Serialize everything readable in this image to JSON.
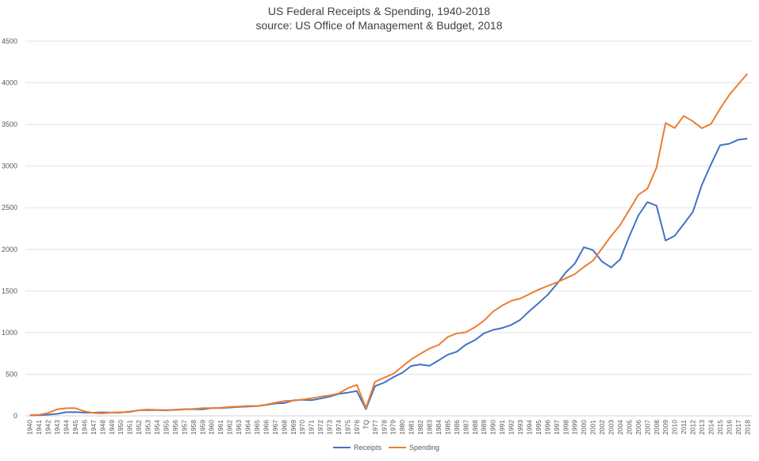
{
  "chart_data": {
    "type": "line",
    "title": "US Federal Receipts & Spending, 1940-2018",
    "subtitle": "source: US Office of Management & Budget, 2018",
    "xlabel": "",
    "ylabel": "",
    "ylim": [
      0,
      4500
    ],
    "yticks": [
      0,
      500,
      1000,
      1500,
      2000,
      2500,
      3000,
      3500,
      4000,
      4500
    ],
    "grid": true,
    "legend_position": "bottom",
    "categories": [
      "1940",
      "1941",
      "1942",
      "1943",
      "1944",
      "1945",
      "1946",
      "1947",
      "1948",
      "1949",
      "1950",
      "1951",
      "1952",
      "1953",
      "1954",
      "1955",
      "1956",
      "1957",
      "1958",
      "1959",
      "1960",
      "1961",
      "1962",
      "1963",
      "1964",
      "1965",
      "1966",
      "1967",
      "1968",
      "1969",
      "1970",
      "1971",
      "1972",
      "1973",
      "1974",
      "1975",
      "1976",
      "TQ",
      "1977",
      "1978",
      "1979",
      "1980",
      "1981",
      "1982",
      "1983",
      "1984",
      "1985",
      "1986",
      "1987",
      "1988",
      "1989",
      "1990",
      "1991",
      "1992",
      "1993",
      "1994",
      "1995",
      "1996",
      "1997",
      "1998",
      "1999",
      "2000",
      "2001",
      "2002",
      "2003",
      "2004",
      "2005",
      "2006",
      "2007",
      "2008",
      "2009",
      "2010",
      "2011",
      "2012",
      "2013",
      "2014",
      "2015",
      "2016",
      "2017",
      "2018"
    ],
    "series": [
      {
        "name": "Receipts",
        "color": "#4472C4",
        "values": [
          6.5,
          8.7,
          14.6,
          24.0,
          43.7,
          45.2,
          39.3,
          38.5,
          41.6,
          39.4,
          39.4,
          51.6,
          66.2,
          69.6,
          69.7,
          65.5,
          74.6,
          80.0,
          79.6,
          79.2,
          92.5,
          94.4,
          99.7,
          106.6,
          112.6,
          116.8,
          130.8,
          148.8,
          153.0,
          186.9,
          192.8,
          187.1,
          207.3,
          230.8,
          263.2,
          279.1,
          298.1,
          81.2,
          355.6,
          399.6,
          463.3,
          517.1,
          599.3,
          617.8,
          600.6,
          666.4,
          734.0,
          769.2,
          854.3,
          909.2,
          991.1,
          1032.0,
          1055.0,
          1091.2,
          1154.3,
          1258.6,
          1351.8,
          1453.1,
          1579.2,
          1721.7,
          1827.5,
          2025.2,
          1991.1,
          1853.1,
          1782.3,
          1880.1,
          2153.6,
          2406.9,
          2568.0,
          2524.0,
          2105.0,
          2162.7,
          2303.5,
          2450.0,
          2775.1,
          3021.5,
          3249.9,
          3268.0,
          3316.2,
          3329.9
        ]
      },
      {
        "name": "Spending",
        "color": "#ED7D31",
        "values": [
          9.5,
          13.7,
          35.1,
          78.6,
          91.3,
          92.7,
          55.2,
          34.5,
          29.8,
          38.8,
          42.6,
          45.5,
          67.7,
          76.1,
          70.9,
          68.4,
          70.6,
          76.6,
          82.4,
          92.1,
          92.2,
          97.7,
          106.8,
          111.3,
          118.5,
          118.2,
          134.5,
          157.5,
          178.1,
          183.6,
          195.6,
          210.2,
          230.7,
          245.7,
          269.4,
          332.3,
          371.8,
          96.0,
          409.2,
          458.7,
          504.0,
          590.9,
          678.2,
          745.7,
          808.4,
          851.8,
          946.3,
          990.4,
          1004.0,
          1064.4,
          1143.7,
          1253.0,
          1324.2,
          1381.5,
          1409.4,
          1461.8,
          1515.7,
          1560.5,
          1601.1,
          1652.5,
          1701.8,
          1789.0,
          1862.8,
          2010.9,
          2159.9,
          2292.8,
          2472.0,
          2655.1,
          2728.7,
          2982.5,
          3517.7,
          3457.1,
          3603.1,
          3537.0,
          3454.6,
          3506.1,
          3688.4,
          3852.6,
          3981.6,
          4109.0
        ]
      }
    ]
  }
}
